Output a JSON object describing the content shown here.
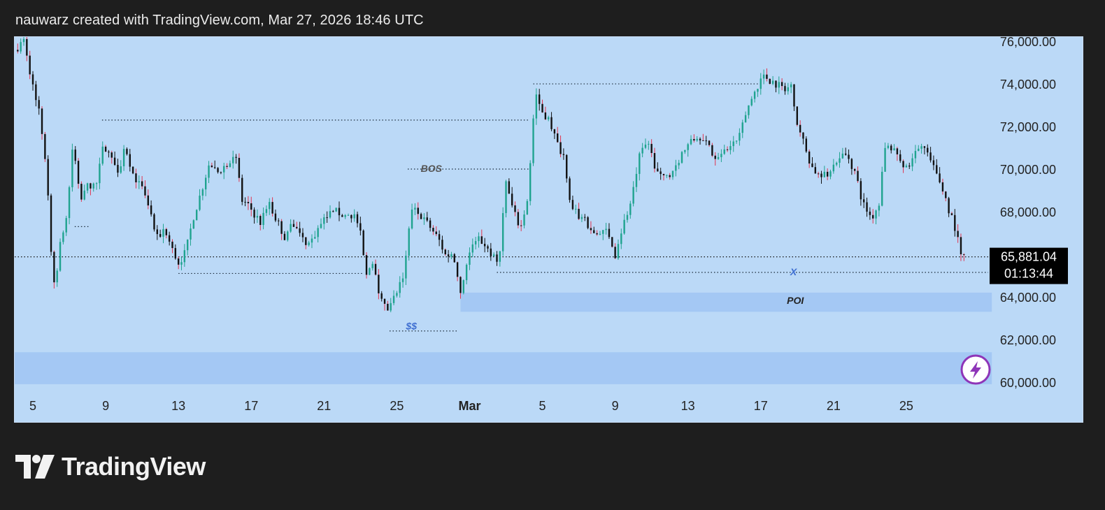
{
  "header": {
    "caption": "nauwarz created with TradingView.com, Mar 27, 2026 18:46 UTC"
  },
  "footer": {
    "brand": "TradingView"
  },
  "colors": {
    "page_bg": "#1e1e1e",
    "chart_bg": "#bbd9f7",
    "up": "#1fa38f",
    "down": "#111111",
    "up_wick": "#1fa38f",
    "red_wick": "#e0344f",
    "zone": "#a4c8f4",
    "label_blue": "#3f6fd1",
    "price_tag": "#000000",
    "badge": "#8e35b8"
  },
  "icons": {
    "alert_badge": "lightning-icon",
    "logo": "tradingview-logo-icon"
  },
  "chart_data": {
    "type": "candlestick",
    "title": "",
    "y_axis": {
      "position": "right",
      "range": [
        59800,
        76200
      ],
      "ticks": [
        "76,000.00",
        "74,000.00",
        "72,000.00",
        "70,000.00",
        "68,000.00",
        "64,000.00",
        "62,000.00",
        "60,000.00"
      ],
      "tick_values": [
        76000,
        74000,
        72000,
        70000,
        68000,
        64000,
        62000,
        60000
      ]
    },
    "x_axis": {
      "ticks": [
        {
          "label": "5",
          "day": 5
        },
        {
          "label": "9",
          "day": 9
        },
        {
          "label": "13",
          "day": 13
        },
        {
          "label": "17",
          "day": 17
        },
        {
          "label": "21",
          "day": 21
        },
        {
          "label": "25",
          "day": 25
        },
        {
          "label": "Mar",
          "day": 29,
          "bold": true
        },
        {
          "label": "5",
          "day": 33
        },
        {
          "label": "9",
          "day": 37
        },
        {
          "label": "13",
          "day": 41
        },
        {
          "label": "17",
          "day": 45
        },
        {
          "label": "21",
          "day": 49
        },
        {
          "label": "25",
          "day": 53
        }
      ],
      "range": [
        4.0,
        57.5
      ]
    },
    "last_price": {
      "value": 65881.04,
      "label": "65,881.04",
      "countdown": "01:13:44"
    },
    "daily_path": [
      [
        4.0,
        75600
      ],
      [
        4.5,
        76000
      ],
      [
        4.9,
        74200
      ],
      [
        5.3,
        73000
      ],
      [
        5.7,
        70400
      ],
      [
        6.0,
        66300
      ],
      [
        6.2,
        64400
      ],
      [
        6.5,
        66400
      ],
      [
        6.9,
        68000
      ],
      [
        7.2,
        71300
      ],
      [
        7.6,
        68400
      ],
      [
        8.0,
        69200
      ],
      [
        8.5,
        69300
      ],
      [
        8.9,
        71200
      ],
      [
        9.3,
        70500
      ],
      [
        9.7,
        70000
      ],
      [
        10.1,
        71000
      ],
      [
        10.5,
        69800
      ],
      [
        11.0,
        69000
      ],
      [
        11.4,
        68200
      ],
      [
        11.8,
        66700
      ],
      [
        12.2,
        67200
      ],
      [
        12.6,
        66300
      ],
      [
        13.0,
        65600
      ],
      [
        13.4,
        66100
      ],
      [
        13.8,
        67700
      ],
      [
        14.2,
        68800
      ],
      [
        14.7,
        70300
      ],
      [
        15.1,
        69800
      ],
      [
        15.6,
        70200
      ],
      [
        16.1,
        70800
      ],
      [
        16.5,
        68500
      ],
      [
        17.0,
        68100
      ],
      [
        17.5,
        67500
      ],
      [
        18.0,
        68300
      ],
      [
        18.4,
        67600
      ],
      [
        18.9,
        66700
      ],
      [
        19.3,
        67500
      ],
      [
        19.8,
        66700
      ],
      [
        20.2,
        66500
      ],
      [
        20.7,
        67200
      ],
      [
        21.2,
        67800
      ],
      [
        21.7,
        68000
      ],
      [
        22.1,
        67800
      ],
      [
        22.6,
        67900
      ],
      [
        23.0,
        67000
      ],
      [
        23.3,
        64900
      ],
      [
        23.7,
        65800
      ],
      [
        24.1,
        63900
      ],
      [
        24.5,
        63300
      ],
      [
        25.0,
        64200
      ],
      [
        25.4,
        65000
      ],
      [
        25.8,
        68200
      ],
      [
        26.3,
        67800
      ],
      [
        26.8,
        67300
      ],
      [
        27.3,
        66700
      ],
      [
        27.7,
        65900
      ],
      [
        28.1,
        66100
      ],
      [
        28.5,
        64200
      ],
      [
        28.9,
        65800
      ],
      [
        29.3,
        66800
      ],
      [
        29.8,
        66500
      ],
      [
        30.2,
        66000
      ],
      [
        30.6,
        65400
      ],
      [
        31.0,
        69400
      ],
      [
        31.4,
        68000
      ],
      [
        31.8,
        67200
      ],
      [
        32.2,
        68700
      ],
      [
        32.6,
        73600
      ],
      [
        33.0,
        72700
      ],
      [
        33.4,
        72300
      ],
      [
        33.8,
        71200
      ],
      [
        34.2,
        70600
      ],
      [
        34.6,
        68100
      ],
      [
        35.0,
        67800
      ],
      [
        35.5,
        67400
      ],
      [
        36.0,
        66800
      ],
      [
        36.5,
        67100
      ],
      [
        37.0,
        66000
      ],
      [
        37.4,
        67300
      ],
      [
        37.9,
        68500
      ],
      [
        38.3,
        70500
      ],
      [
        38.8,
        71300
      ],
      [
        39.2,
        70000
      ],
      [
        39.7,
        69500
      ],
      [
        40.2,
        70000
      ],
      [
        40.7,
        70800
      ],
      [
        41.1,
        71200
      ],
      [
        41.5,
        71500
      ],
      [
        41.8,
        71600
      ],
      [
        42.3,
        70700
      ],
      [
        42.8,
        70500
      ],
      [
        43.3,
        71100
      ],
      [
        43.8,
        71400
      ],
      [
        44.2,
        72700
      ],
      [
        44.7,
        73700
      ],
      [
        45.1,
        74400
      ],
      [
        45.5,
        74200
      ],
      [
        45.9,
        74000
      ],
      [
        46.3,
        73700
      ],
      [
        46.7,
        73900
      ],
      [
        47.0,
        72200
      ],
      [
        47.4,
        71100
      ],
      [
        47.8,
        70100
      ],
      [
        48.3,
        69600
      ],
      [
        48.8,
        69800
      ],
      [
        49.3,
        70700
      ],
      [
        49.8,
        70600
      ],
      [
        50.2,
        69800
      ],
      [
        50.6,
        68400
      ],
      [
        51.1,
        67700
      ],
      [
        51.5,
        68400
      ],
      [
        51.8,
        70900
      ],
      [
        52.2,
        71100
      ],
      [
        52.6,
        70600
      ],
      [
        53.1,
        69800
      ],
      [
        53.6,
        71200
      ],
      [
        54.0,
        71000
      ],
      [
        54.5,
        70000
      ],
      [
        54.9,
        69300
      ],
      [
        55.3,
        68200
      ],
      [
        55.7,
        67200
      ],
      [
        56.0,
        65900
      ],
      [
        56.3,
        65800
      ]
    ],
    "annotations": [
      {
        "type": "label",
        "text": "BOS",
        "x_day": 26.9,
        "y": 70000
      },
      {
        "type": "label",
        "text": "$$",
        "x_day": 25.8,
        "y": 62600
      },
      {
        "type": "label",
        "text": "X",
        "x_day": 46.8,
        "y": 65150
      },
      {
        "type": "label",
        "text": "POI",
        "x_day": 46.9,
        "y": 63800
      }
    ],
    "levels": [
      {
        "name": "high-level-72300",
        "y": 72300,
        "from_day": 8.8,
        "to_day": 32.3
      },
      {
        "name": "bos-level",
        "y": 70000,
        "from_day": 25.6,
        "to_day": 32.3
      },
      {
        "name": "high-level-74000",
        "y": 74000,
        "from_day": 32.5,
        "to_day": 45.0
      },
      {
        "name": "low-level-65100",
        "y": 65100,
        "from_day": 13.0,
        "to_day": 23.2
      },
      {
        "name": "x-level",
        "y": 65150,
        "from_day": 30.5,
        "to_day": 57.7
      },
      {
        "name": "liquidity-$$",
        "y": 62400,
        "from_day": 24.6,
        "to_day": 28.4
      },
      {
        "name": "small-level-67300",
        "y": 67300,
        "from_day": 7.3,
        "to_day": 8.1
      }
    ],
    "zones": [
      {
        "name": "poi-zone",
        "from_y": 63300,
        "to_y": 64200,
        "from_day": 28.5,
        "to_day": 57.7
      },
      {
        "name": "lower-zone",
        "from_y": 59900,
        "to_y": 61400,
        "from_day": 4.0,
        "to_day": 57.7
      }
    ],
    "grid": false,
    "legend": "none"
  }
}
